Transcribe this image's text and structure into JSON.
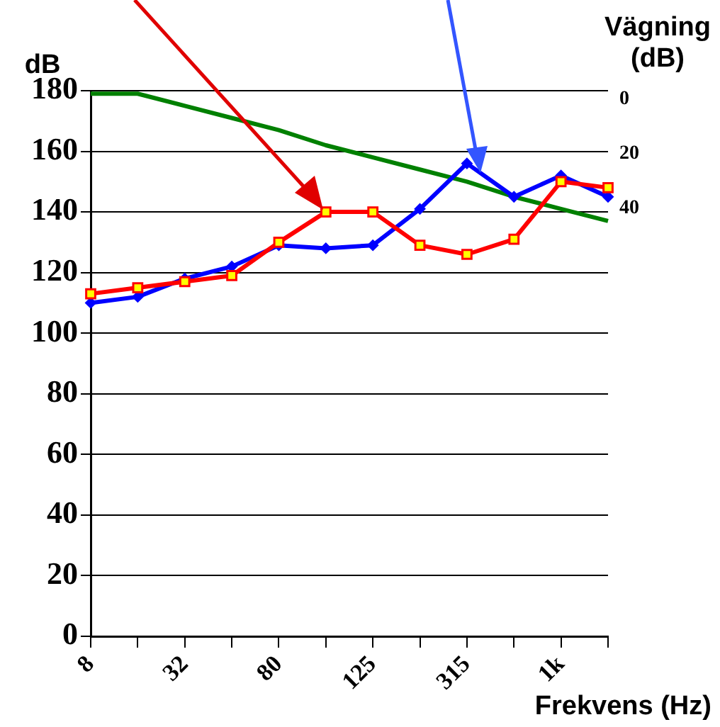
{
  "chart_data": {
    "type": "line",
    "xlabel": "Frekvens (Hz)",
    "ylabel": "dB",
    "y2label": "Vägning (dB)",
    "categories": [
      "8",
      null,
      "32",
      null,
      "80",
      null,
      "125",
      null,
      "315",
      null,
      "1k",
      null
    ],
    "series": [
      {
        "color": "#0000ff",
        "marker": "diamond",
        "values": [
          110,
          112,
          118,
          122,
          129,
          128,
          129,
          141,
          156,
          145,
          152,
          145
        ]
      },
      {
        "color": "#ff0000",
        "marker": "square",
        "values": [
          113,
          115,
          117,
          119,
          130,
          140,
          140,
          129,
          126,
          131,
          150,
          148
        ]
      },
      {
        "color": "#008000",
        "marker": "none",
        "values": [
          179,
          179,
          175,
          171,
          167,
          162,
          158,
          154,
          150,
          145,
          141,
          137
        ]
      }
    ],
    "ylim": [
      0,
      180
    ],
    "yticks": [
      0,
      20,
      40,
      60,
      80,
      100,
      120,
      140,
      160,
      180
    ],
    "y2lim": [
      197,
      -3
    ],
    "y2ticks": [
      0,
      20,
      40
    ],
    "grid": "y",
    "legend": false
  }
}
